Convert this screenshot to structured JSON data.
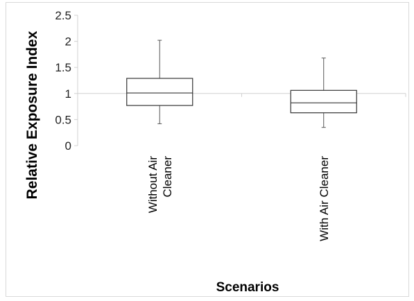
{
  "chart_data": {
    "type": "box",
    "title": "",
    "xlabel": "Scenarios",
    "ylabel": "Relative Exposure Index",
    "ylim": [
      0,
      2.5
    ],
    "yticks": [
      0,
      0.5,
      1,
      1.5,
      2,
      2.5
    ],
    "categories": [
      [
        "Without Air",
        "Cleaner"
      ],
      [
        "With Air Cleaner"
      ]
    ],
    "boxes": [
      {
        "min": 0.42,
        "q1": 0.77,
        "median": 1.01,
        "q3": 1.29,
        "max": 2.02
      },
      {
        "min": 0.35,
        "q1": 0.63,
        "median": 0.82,
        "q3": 1.06,
        "max": 1.68
      }
    ],
    "reference_line": 1,
    "grid": false,
    "legend": "none"
  }
}
